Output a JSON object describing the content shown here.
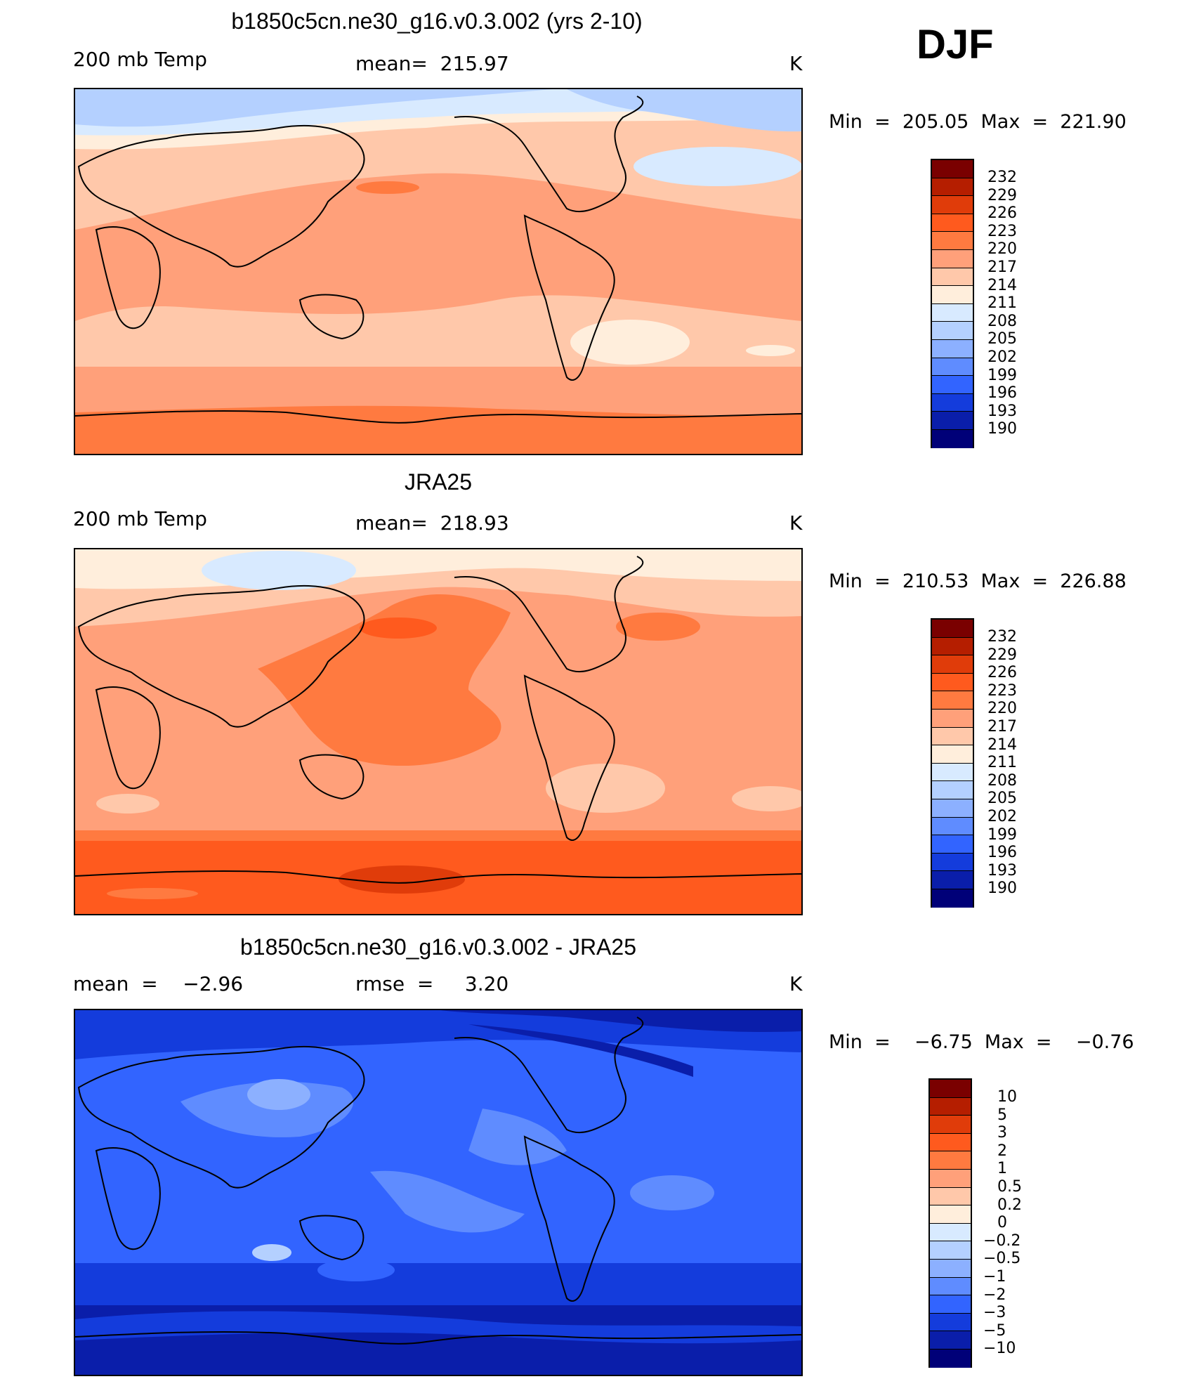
{
  "season": "DJF",
  "panels": [
    {
      "title": "b1850c5cn.ne30_g16.v0.3.002 (yrs 2-10)",
      "left_label": "200 mb Temp",
      "center_label": "mean=  215.97",
      "units": "K",
      "minmax": "Min  =  205.05  Max  =  221.90",
      "colorbar_labels": [
        "232",
        "229",
        "226",
        "223",
        "220",
        "217",
        "214",
        "211",
        "208",
        "205",
        "202",
        "199",
        "196",
        "193",
        "190"
      ]
    },
    {
      "title": "JRA25",
      "left_label": "200 mb Temp",
      "center_label": "mean=  218.93",
      "units": "K",
      "minmax": "Min  =  210.53  Max  =  226.88",
      "colorbar_labels": [
        "232",
        "229",
        "226",
        "223",
        "220",
        "217",
        "214",
        "211",
        "208",
        "205",
        "202",
        "199",
        "196",
        "193",
        "190"
      ]
    },
    {
      "title": "b1850c5cn.ne30_g16.v0.3.002 - JRA25",
      "left_label": "mean  =    −2.96",
      "center_label": "rmse  =     3.20",
      "units": "K",
      "minmax": "Min  =    −6.75  Max  =    −0.76",
      "colorbar_labels": [
        "10",
        "5",
        "3",
        "2",
        "1",
        "0.5",
        "0.2",
        "0",
        "−0.2",
        "−0.5",
        "−1",
        "−2",
        "−3",
        "−5",
        "−10"
      ]
    }
  ],
  "palette": [
    "#7a0000",
    "#b51e00",
    "#e03c0a",
    "#ff5a1e",
    "#ff7a40",
    "#ffa07a",
    "#ffc8aa",
    "#ffeedc",
    "#d8eaff",
    "#b4d0ff",
    "#8cb0ff",
    "#5f8cff",
    "#3264ff",
    "#143cdc",
    "#0a1eaa",
    "#000078"
  ]
}
